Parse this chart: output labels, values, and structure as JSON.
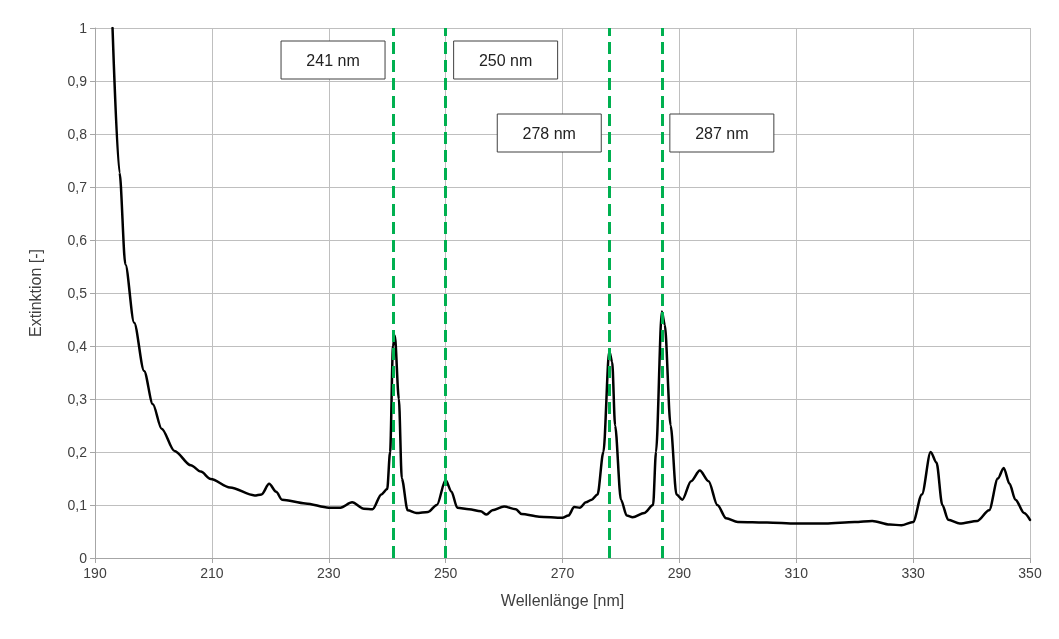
{
  "chart_data": {
    "type": "line",
    "xlabel": "Wellenlänge [nm]",
    "ylabel": "Extinktion [-]",
    "xlim": [
      190,
      350
    ],
    "xticks": [
      190,
      210,
      230,
      250,
      270,
      290,
      310,
      330,
      350
    ],
    "ylim": [
      0,
      1
    ],
    "yticks": [
      0,
      {
        "value": 0.1,
        "label": "0,1"
      },
      {
        "value": 0.2,
        "label": "0,2"
      },
      {
        "value": 0.3,
        "label": "0,3"
      },
      {
        "value": 0.4,
        "label": "0,4"
      },
      {
        "value": 0.5,
        "label": "0,5"
      },
      {
        "value": 0.6,
        "label": "0,6"
      },
      {
        "value": 0.7,
        "label": "0,7"
      },
      {
        "value": 0.8,
        "label": "0,8"
      },
      {
        "value": 0.9,
        "label": "0,9"
      },
      1
    ],
    "grid": true,
    "marker": "none",
    "line_style": "solid",
    "series": [
      {
        "color": "#000000",
        "x": [
          193,
          194.2,
          195.2,
          196.7,
          198.4,
          199.9,
          201.4,
          203.6,
          206.4,
          208.1,
          209.8,
          213.1,
          217.3,
          218.5,
          219.8,
          221,
          222,
          226,
          230,
          232,
          234,
          236,
          237.5,
          239,
          240,
          240.5,
          241,
          241.3,
          242,
          242.5,
          243.5,
          245,
          247,
          248.5,
          250,
          251,
          252,
          254,
          256,
          257,
          258,
          260,
          262,
          263,
          266,
          270,
          271,
          272,
          273,
          274,
          275,
          276,
          277,
          278,
          278.5,
          279,
          280,
          281,
          282,
          284,
          285.5,
          286,
          287,
          287.5,
          288.5,
          289.5,
          290.5,
          292,
          293.5,
          295,
          296.5,
          298,
          300,
          305,
          310,
          315,
          320,
          323,
          326,
          328,
          330,
          331.5,
          333,
          334,
          335,
          336,
          338,
          341,
          343,
          344.5,
          345.5,
          346.5,
          347.5,
          349,
          350
        ],
        "values": [
          1.0,
          0.727,
          0.554,
          0.444,
          0.353,
          0.29,
          0.244,
          0.202,
          0.175,
          0.163,
          0.149,
          0.133,
          0.118,
          0.12,
          0.14,
          0.125,
          0.11,
          0.103,
          0.095,
          0.095,
          0.105,
          0.093,
          0.092,
          0.12,
          0.13,
          0.2,
          0.4,
          0.42,
          0.3,
          0.15,
          0.09,
          0.085,
          0.087,
          0.1,
          0.147,
          0.125,
          0.095,
          0.092,
          0.088,
          0.082,
          0.09,
          0.097,
          0.092,
          0.083,
          0.078,
          0.076,
          0.08,
          0.096,
          0.095,
          0.105,
          0.11,
          0.12,
          0.2,
          0.39,
          0.37,
          0.25,
          0.11,
          0.08,
          0.077,
          0.085,
          0.1,
          0.2,
          0.465,
          0.44,
          0.25,
          0.12,
          0.11,
          0.145,
          0.165,
          0.145,
          0.1,
          0.075,
          0.068,
          0.067,
          0.065,
          0.065,
          0.068,
          0.07,
          0.063,
          0.062,
          0.068,
          0.12,
          0.2,
          0.18,
          0.1,
          0.072,
          0.065,
          0.07,
          0.09,
          0.15,
          0.17,
          0.14,
          0.11,
          0.085,
          0.072
        ]
      }
    ],
    "ref_lines": [
      {
        "axis": "x",
        "value": 241,
        "label": "241 nm",
        "color": "#00b050",
        "line_style": "dashed"
      },
      {
        "axis": "x",
        "value": 250,
        "label": "250 nm",
        "color": "#00b050",
        "line_style": "dashed"
      },
      {
        "axis": "x",
        "value": 278,
        "label": "278 nm",
        "color": "#00b050",
        "line_style": "dashed"
      },
      {
        "axis": "x",
        "value": 287,
        "label": "287 nm",
        "color": "#00b050",
        "line_style": "dashed"
      }
    ]
  }
}
